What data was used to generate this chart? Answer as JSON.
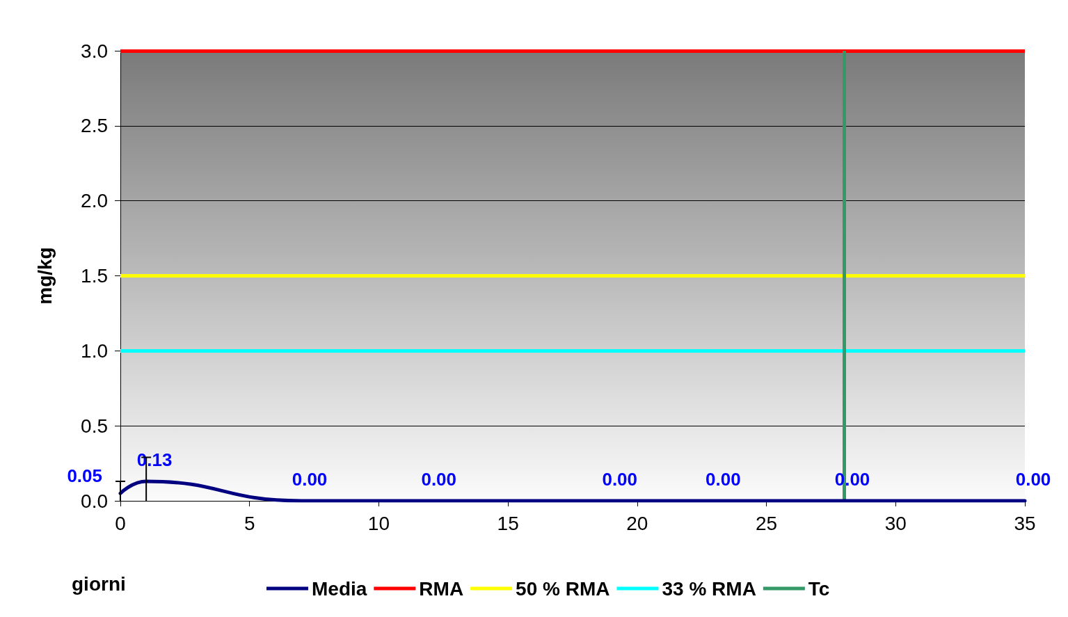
{
  "chart_data": {
    "type": "line",
    "xlabel": "giorni",
    "ylabel": "mg/kg",
    "x": [
      0,
      1,
      7,
      12,
      19,
      23,
      28,
      35
    ],
    "series": [
      {
        "name": "Media",
        "color": "#000080",
        "values": [
          0.05,
          0.13,
          0.0,
          0.0,
          0.0,
          0.0,
          0.0,
          0.0
        ],
        "errors": [
          [
            0,
            0.13
          ],
          [
            0,
            0.29
          ],
          null,
          null,
          null,
          null,
          null,
          null
        ],
        "value_labels": [
          "0.05",
          "0.13",
          "0.00",
          "0.00",
          "0.00",
          "0.00",
          "0.00",
          "0.00"
        ]
      }
    ],
    "xlim": [
      0,
      35
    ],
    "xticks": [
      0,
      5,
      10,
      15,
      20,
      25,
      30,
      35
    ],
    "ylim": [
      0,
      3
    ],
    "yticks": [
      {
        "value": 0,
        "label": "0.0"
      },
      {
        "value": 0.5,
        "label": "0.5"
      },
      {
        "value": 1,
        "label": "1.0"
      },
      {
        "value": 1.5,
        "label": "1.5"
      },
      {
        "value": 2,
        "label": "2.0"
      },
      {
        "value": 2.5,
        "label": "2.5"
      },
      {
        "value": 3,
        "label": "3.0"
      }
    ],
    "ref_lines": [
      {
        "axis": "y",
        "value": 3,
        "label": "RMA",
        "color": "#ff0000"
      },
      {
        "axis": "y",
        "value": 1.5,
        "label": "50 % RMA",
        "color": "#ffff00"
      },
      {
        "axis": "y",
        "value": 1,
        "label": "33 % RMA",
        "color": "#00ffff"
      },
      {
        "axis": "x",
        "value": 28,
        "label": "Tc",
        "color": "#339966"
      }
    ],
    "grid": "y",
    "legend": "bottom",
    "marker": "none",
    "line_style": "solid"
  }
}
